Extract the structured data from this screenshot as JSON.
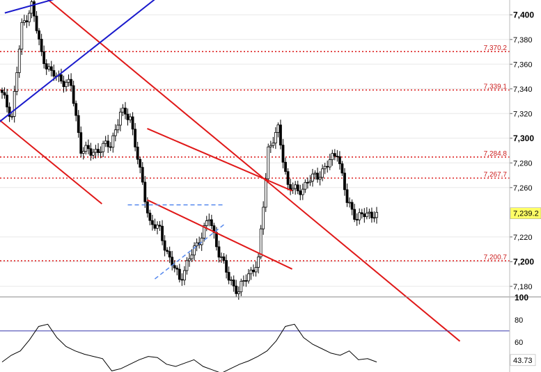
{
  "chart_data": [
    {
      "type": "candlestick",
      "title": "",
      "ylim": [
        7172,
        7412
      ],
      "y_ticks": [
        {
          "value": 7400,
          "label": "7,400",
          "bold": true
        },
        {
          "value": 7380,
          "label": "7,380",
          "bold": false
        },
        {
          "value": 7360,
          "label": "7,360",
          "bold": false
        },
        {
          "value": 7340,
          "label": "7,340",
          "bold": false
        },
        {
          "value": 7320,
          "label": "7,320",
          "bold": false
        },
        {
          "value": 7300,
          "label": "7,300",
          "bold": true
        },
        {
          "value": 7280,
          "label": "7,280",
          "bold": false
        },
        {
          "value": 7260,
          "label": "7,260",
          "bold": false
        },
        {
          "value": 7220,
          "label": "7,220",
          "bold": false
        },
        {
          "value": 7200,
          "label": "7,200",
          "bold": true
        },
        {
          "value": 7180,
          "label": "7,180",
          "bold": false
        }
      ],
      "horizontal_levels": [
        {
          "value": 7370.2,
          "label": "7,370.2"
        },
        {
          "value": 7339.1,
          "label": "7,339.1"
        },
        {
          "value": 7284.8,
          "label": "7,284.8"
        },
        {
          "value": 7267.7,
          "label": "7,267.7"
        },
        {
          "value": 7200.7,
          "label": "7,200.7"
        }
      ],
      "last_price": {
        "value": 7239.2,
        "label": "7,239.2"
      },
      "colors": {
        "level": "#dd2222",
        "trend_red": "#e01818",
        "trend_blue": "#1a1acc",
        "triangle": "#5588ee",
        "candle": "#000000",
        "last_bg": "#ffff66"
      },
      "bars_per_anchor": 4,
      "close_anchors": [
        7335,
        7318,
        7390,
        7408,
        7368,
        7352,
        7348,
        7342,
        7292,
        7288,
        7292,
        7295,
        7320,
        7318,
        7272,
        7232,
        7225,
        7202,
        7186,
        7202,
        7218,
        7235,
        7208,
        7186,
        7176,
        7190,
        7200,
        7292,
        7306,
        7262,
        7256,
        7265,
        7270,
        7278,
        7290,
        7248,
        7236,
        7238,
        7240
      ],
      "trendlines": [
        {
          "color": "red",
          "points": [
            [
              7415,
              17
            ],
            [
              7208,
              142
            ]
          ]
        },
        {
          "color": "red",
          "points": [
            [
              7313,
              0
            ],
            [
              7264,
              30
            ]
          ]
        },
        {
          "color": "red",
          "points": [
            [
              7306,
              61
            ],
            [
              7270,
              103
            ]
          ]
        },
        {
          "color": "red",
          "points": [
            [
              7248,
              61
            ],
            [
              7208,
              103
            ]
          ]
        },
        {
          "color": "blue",
          "points": [
            [
              7315,
              0
            ],
            [
              7400,
              54
            ]
          ]
        },
        {
          "color": "blue",
          "points": [
            [
              7402,
              2
            ],
            [
              7412,
              20
            ]
          ]
        }
      ]
    },
    {
      "type": "line",
      "title": "",
      "ylim": [
        33,
        100
      ],
      "y_ticks": [
        {
          "value": 100,
          "label": "100",
          "bold": true
        },
        {
          "value": 80,
          "label": "80",
          "bold": false
        },
        {
          "value": 60,
          "label": "60",
          "bold": false
        }
      ],
      "reference_lines": [
        70,
        30
      ],
      "last_value": {
        "value": 43.73,
        "label": "43.73"
      },
      "values": [
        42,
        48,
        52,
        62,
        74,
        76,
        64,
        56,
        52,
        49,
        47,
        45,
        34,
        36,
        40,
        44,
        47,
        46,
        40,
        38,
        41,
        44,
        38,
        35,
        32,
        36,
        40,
        43,
        47,
        52,
        61,
        74,
        76,
        64,
        58,
        54,
        50,
        48,
        52,
        44,
        45,
        42
      ]
    }
  ]
}
